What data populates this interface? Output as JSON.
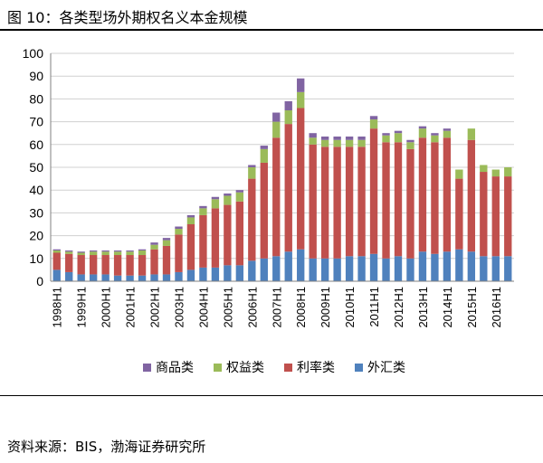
{
  "header": {
    "title": "图 10：各类型场外期权名义本金规模"
  },
  "footer": {
    "source": "资料来源：BIS，渤海证券研究所"
  },
  "chart_data": {
    "type": "bar",
    "stacked": true,
    "categories": [
      "1998H1",
      "1998H2",
      "1999H1",
      "1999H2",
      "2000H1",
      "2000H2",
      "2001H1",
      "2001H2",
      "2002H1",
      "2002H2",
      "2003H1",
      "2003H2",
      "2004H1",
      "2004H2",
      "2005H1",
      "2005H2",
      "2006H1",
      "2006H2",
      "2007H1",
      "2007H2",
      "2008H1",
      "2008H2",
      "2009H1",
      "2009H2",
      "2010H1",
      "2010H2",
      "2011H1",
      "2011H2",
      "2012H1",
      "2012H2",
      "2013H1",
      "2013H2",
      "2014H1",
      "2014H2",
      "2015H1",
      "2015H2",
      "2016H1",
      "2016H2"
    ],
    "x_tick_labels": [
      "1998H1",
      "1999H1",
      "2000H1",
      "2001H1",
      "2002H1",
      "2003H1",
      "2004H1",
      "2005H1",
      "2006H1",
      "2007H1",
      "2008H1",
      "2009H1",
      "2010H1",
      "2011H1",
      "2012H1",
      "2013H1",
      "2014H1",
      "2015H1",
      "2016H1"
    ],
    "series": [
      {
        "name": "外汇类",
        "color": "#4F81BD",
        "values": [
          5,
          4,
          3,
          3,
          3,
          2.5,
          2.5,
          2.5,
          3,
          3,
          4,
          5,
          6,
          6,
          7,
          7,
          9,
          10,
          11,
          13,
          14,
          10,
          10,
          10,
          11,
          11,
          12,
          10,
          11,
          10,
          13,
          12,
          13,
          14,
          13,
          11,
          11,
          11
        ]
      },
      {
        "name": "利率类",
        "color": "#C0504D",
        "values": [
          7.5,
          8,
          8.5,
          8.5,
          8.5,
          9,
          9,
          9,
          11,
          12.5,
          16.5,
          20,
          23,
          26,
          26.5,
          28,
          36,
          42,
          52,
          56,
          62,
          50,
          49,
          49,
          48,
          48,
          55,
          51,
          50,
          48,
          50,
          49,
          50,
          31,
          49,
          37,
          35,
          35
        ]
      },
      {
        "name": "权益类",
        "color": "#9BBB59",
        "values": [
          1,
          1,
          1,
          1.5,
          1.5,
          1.5,
          1.5,
          2,
          2,
          2.5,
          2.5,
          3,
          3,
          4,
          4,
          4,
          5,
          6,
          7,
          6,
          7,
          3,
          3,
          3,
          3,
          3,
          4,
          3,
          4,
          3,
          4,
          3,
          3,
          4,
          5,
          3,
          3,
          4
        ]
      },
      {
        "name": "商品类",
        "color": "#8064A2",
        "values": [
          0.5,
          0.5,
          0.5,
          0.5,
          0.5,
          0.5,
          0.5,
          0.5,
          1,
          1,
          1,
          1,
          1,
          1,
          1,
          1,
          1,
          1.5,
          4,
          4,
          6,
          2,
          1.5,
          1.5,
          1.5,
          1.5,
          1.5,
          1,
          1,
          1,
          1,
          1,
          1,
          0,
          0,
          0,
          0,
          0
        ]
      }
    ],
    "ylim": [
      0,
      100
    ],
    "y_ticks": [
      0,
      10,
      20,
      30,
      40,
      50,
      60,
      70,
      80,
      90,
      100
    ],
    "grid": true,
    "legend_position": "bottom",
    "legend_order": [
      "商品类",
      "权益类",
      "利率类",
      "外汇类"
    ],
    "title": "",
    "xlabel": "",
    "ylabel": ""
  }
}
